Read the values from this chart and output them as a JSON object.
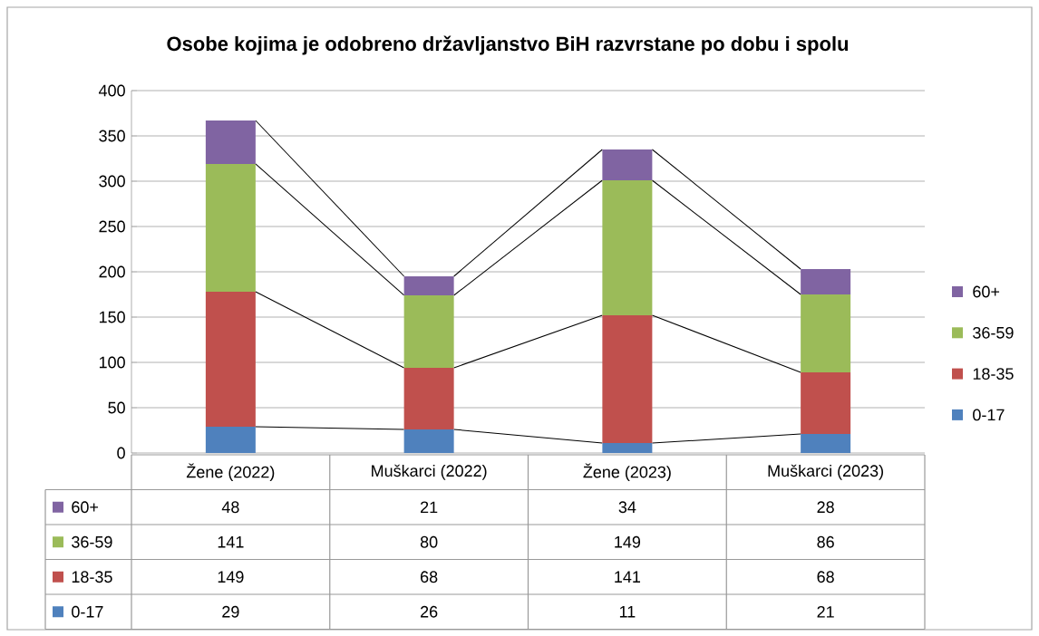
{
  "chart_data": {
    "type": "bar",
    "stacked": true,
    "title": "Osobe kojima je odobreno državljanstvo BiH razvrstane po dobu i spolu",
    "categories": [
      "Žene (2022)",
      "Muškarci (2022)",
      "Žene (2023)",
      "Muškarci (2023)"
    ],
    "series": [
      {
        "name": "0-17",
        "color": "#4f81bd",
        "values": [
          29,
          26,
          11,
          21
        ]
      },
      {
        "name": "18-35",
        "color": "#c0504d",
        "values": [
          149,
          68,
          141,
          68
        ]
      },
      {
        "name": "36-59",
        "color": "#9bbb59",
        "values": [
          141,
          80,
          149,
          86
        ]
      },
      {
        "name": "60+",
        "color": "#8064a2",
        "values": [
          48,
          21,
          34,
          28
        ]
      }
    ],
    "ylim": [
      0,
      400
    ],
    "yticks": [
      0,
      50,
      100,
      150,
      200,
      250,
      300,
      350,
      400
    ],
    "grid": "y",
    "legend": "right",
    "data_labels": true
  }
}
